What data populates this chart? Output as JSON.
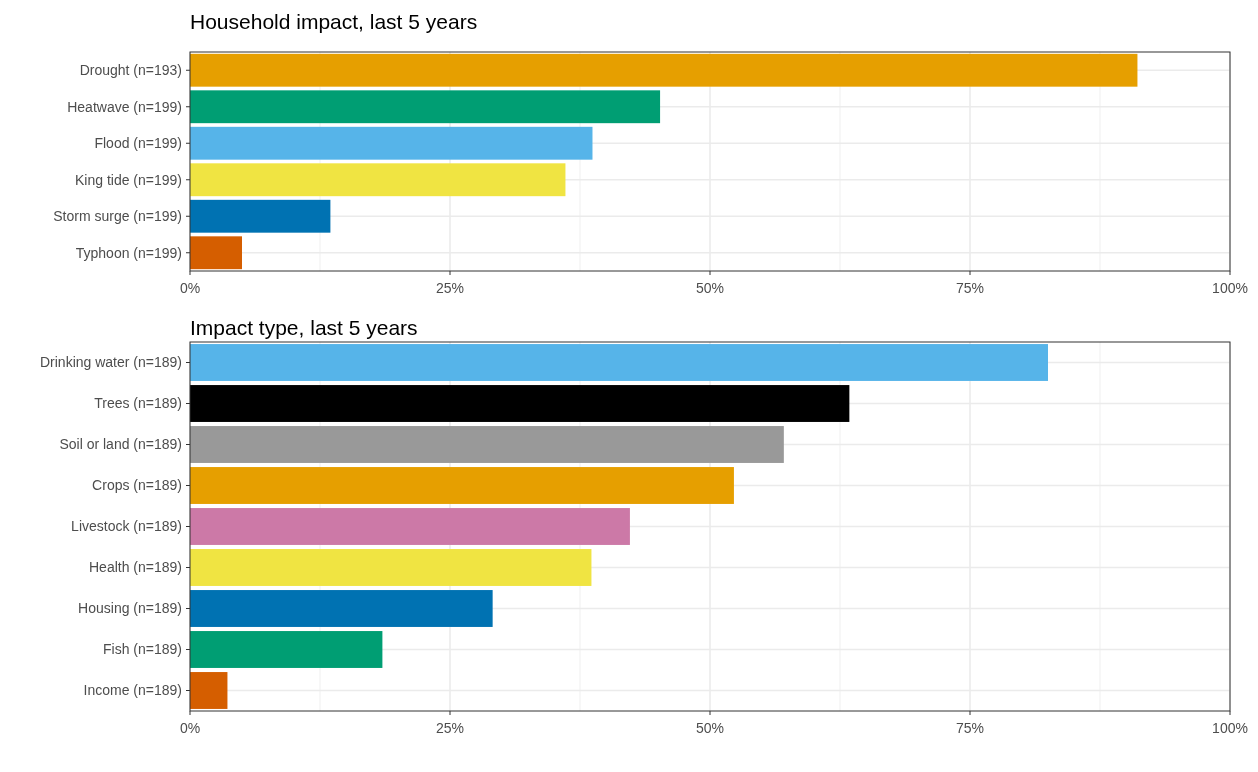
{
  "chart_data": [
    {
      "type": "bar",
      "orientation": "horizontal",
      "title": "Household impact, last 5 years",
      "categories": [
        "Drought (n=193)",
        "Heatwave (n=199)",
        "Flood (n=199)",
        "King tide (n=199)",
        "Storm surge (n=199)",
        "Typhoon (n=199)"
      ],
      "values": [
        91.1,
        45.2,
        38.7,
        36.1,
        13.5,
        5.0
      ],
      "colors": [
        "#e69f00",
        "#009e73",
        "#56b4e9",
        "#f0e442",
        "#0072b2",
        "#d55e00"
      ],
      "xlim": [
        0,
        100
      ],
      "xticks": [
        {
          "value": 0,
          "label": "0%"
        },
        {
          "value": 25,
          "label": "25%"
        },
        {
          "value": 50,
          "label": "50%"
        },
        {
          "value": 75,
          "label": "75%"
        },
        {
          "value": 100,
          "label": "100%"
        }
      ],
      "grid": true
    },
    {
      "type": "bar",
      "orientation": "horizontal",
      "title": "Impact type, last 5 years",
      "categories": [
        "Drinking water (n=189)",
        "Trees (n=189)",
        "Soil or land (n=189)",
        "Crops (n=189)",
        "Livestock (n=189)",
        "Health (n=189)",
        "Housing (n=189)",
        "Fish (n=189)",
        "Income (n=189)"
      ],
      "values": [
        82.5,
        63.4,
        57.1,
        52.3,
        42.3,
        38.6,
        29.1,
        18.5,
        3.6
      ],
      "colors": [
        "#56b4e9",
        "#000000",
        "#999999",
        "#e69f00",
        "#cc79a7",
        "#f0e442",
        "#0072b2",
        "#009e73",
        "#d55e00"
      ],
      "xlim": [
        0,
        100
      ],
      "xticks": [
        {
          "value": 0,
          "label": "0%"
        },
        {
          "value": 25,
          "label": "25%"
        },
        {
          "value": 50,
          "label": "50%"
        },
        {
          "value": 75,
          "label": "75%"
        },
        {
          "value": 100,
          "label": "100%"
        }
      ],
      "grid": true
    }
  ]
}
